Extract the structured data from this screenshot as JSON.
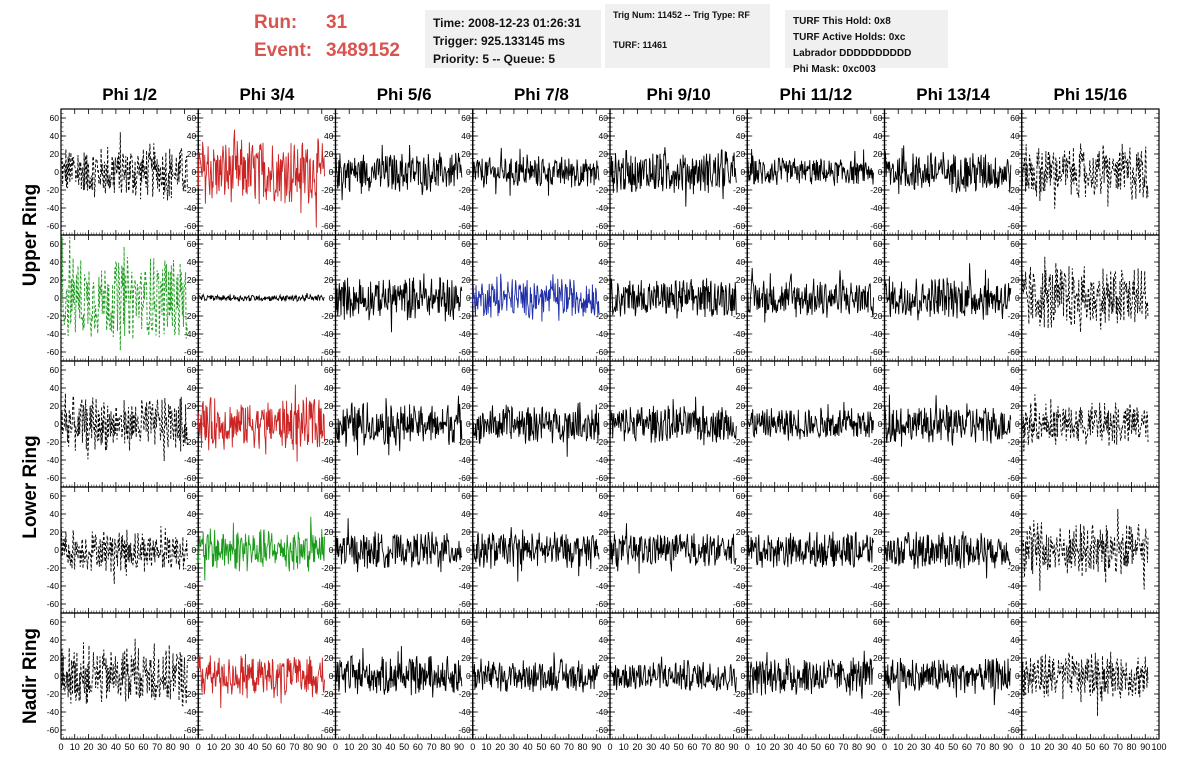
{
  "header": {
    "run_label": "Run:",
    "run_value": "31",
    "event_label": "Event:",
    "event_value": "3489152",
    "time": "Time: 2008-12-23 01:26:31",
    "trigger": "Trigger: 925.133145 ms",
    "priority": "Priority: 5 -- Queue: 5",
    "trig_num": "Trig Num: 11452 -- Trig Type: RF",
    "turf": "TURF: 11461",
    "turf_hold": "TURF This Hold: 0x8",
    "turf_active": "TURF Active Holds: 0xc",
    "labrador": "Labrador DDDDDDDDDD",
    "phi_mask": "Phi Mask: 0xc003"
  },
  "colors": {
    "black": "#000000",
    "red": "#cc2222",
    "green": "#1a9a1a",
    "blue": "#1f2fa8",
    "run_text": "#d9534f"
  },
  "chart_data": {
    "type": "line",
    "columns": [
      "Phi 1/2",
      "Phi 3/4",
      "Phi 5/6",
      "Phi 7/8",
      "Phi 9/10",
      "Phi 11/12",
      "Phi 13/14",
      "Phi 15/16"
    ],
    "rows": [
      "Upper Ring",
      "Upper Ring",
      "Lower Ring",
      "Lower Ring",
      "Nadir Ring"
    ],
    "row_labels": [
      {
        "label": "Upper Ring",
        "rows": [
          0,
          1
        ]
      },
      {
        "label": "Lower Ring",
        "rows": [
          2,
          3
        ]
      },
      {
        "label": "Nadir Ring",
        "rows": [
          4,
          4
        ]
      }
    ],
    "xlim": [
      0,
      100
    ],
    "ylim": [
      -70,
      70
    ],
    "x_ticks": [
      0,
      10,
      20,
      30,
      40,
      50,
      60,
      70,
      80,
      90
    ],
    "x_tick_labels": [
      "0",
      "10",
      "20",
      "30",
      "40",
      "50",
      "60",
      "70",
      "80",
      "90"
    ],
    "x_last_label": "100",
    "y_ticks": [
      -60,
      -40,
      -20,
      0,
      20,
      40,
      60
    ],
    "y_tick_labels": [
      "-60",
      "-40",
      "-20",
      "0",
      "20",
      "40",
      "60"
    ],
    "x_span": [
      0,
      92
    ],
    "panels": [
      [
        {
          "color": "black",
          "style": "dashed",
          "amp": 26
        },
        {
          "color": "red",
          "style": "solid",
          "amp": 30
        },
        {
          "color": "black",
          "style": "solid",
          "amp": 18
        },
        {
          "color": "black",
          "style": "solid",
          "amp": 15
        },
        {
          "color": "black",
          "style": "solid",
          "amp": 20
        },
        {
          "color": "black",
          "style": "solid",
          "amp": 13
        },
        {
          "color": "black",
          "style": "solid",
          "amp": 20
        },
        {
          "color": "black",
          "style": "dashed",
          "amp": 26
        }
      ],
      [
        {
          "color": "green",
          "style": "dashed",
          "amp": 38
        },
        {
          "color": "black",
          "style": "solid",
          "amp": 3
        },
        {
          "color": "black",
          "style": "solid",
          "amp": 20
        },
        {
          "color": "blue",
          "style": "solid",
          "amp": 18
        },
        {
          "color": "black",
          "style": "solid",
          "amp": 18
        },
        {
          "color": "black",
          "style": "solid",
          "amp": 18
        },
        {
          "color": "black",
          "style": "solid",
          "amp": 20
        },
        {
          "color": "black",
          "style": "dashed",
          "amp": 30
        }
      ],
      [
        {
          "color": "black",
          "style": "dashed",
          "amp": 26
        },
        {
          "color": "red",
          "style": "solid",
          "amp": 24
        },
        {
          "color": "black",
          "style": "solid",
          "amp": 20
        },
        {
          "color": "black",
          "style": "solid",
          "amp": 18
        },
        {
          "color": "black",
          "style": "solid",
          "amp": 17
        },
        {
          "color": "black",
          "style": "solid",
          "amp": 15
        },
        {
          "color": "black",
          "style": "solid",
          "amp": 18
        },
        {
          "color": "black",
          "style": "dashed",
          "amp": 20
        }
      ],
      [
        {
          "color": "black",
          "style": "dashed",
          "amp": 20
        },
        {
          "color": "green",
          "style": "solid",
          "amp": 20
        },
        {
          "color": "black",
          "style": "solid",
          "amp": 17
        },
        {
          "color": "black",
          "style": "solid",
          "amp": 17
        },
        {
          "color": "black",
          "style": "solid",
          "amp": 15
        },
        {
          "color": "black",
          "style": "solid",
          "amp": 17
        },
        {
          "color": "black",
          "style": "solid",
          "amp": 17
        },
        {
          "color": "black",
          "style": "dashed",
          "amp": 26
        }
      ],
      [
        {
          "color": "black",
          "style": "dashed",
          "amp": 28
        },
        {
          "color": "red",
          "style": "solid",
          "amp": 20
        },
        {
          "color": "black",
          "style": "solid",
          "amp": 18
        },
        {
          "color": "black",
          "style": "solid",
          "amp": 15
        },
        {
          "color": "black",
          "style": "solid",
          "amp": 15
        },
        {
          "color": "black",
          "style": "solid",
          "amp": 18
        },
        {
          "color": "black",
          "style": "solid",
          "amp": 17
        },
        {
          "color": "black",
          "style": "dashed",
          "amp": 22
        }
      ]
    ]
  }
}
